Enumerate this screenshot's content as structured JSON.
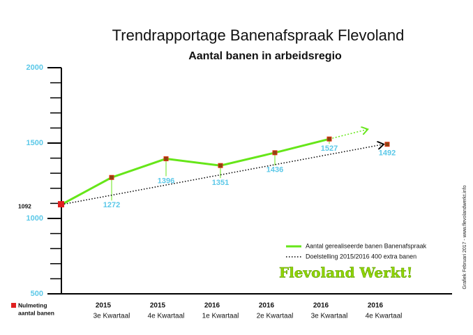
{
  "chart_data": {
    "type": "line",
    "title": "Trendrapportage Banenafspraak Flevoland",
    "subtitle": "Aantal banen in arbeidsregio",
    "categories": [
      null,
      [
        "2015",
        "3e Kwartaal"
      ],
      [
        "2015",
        "4e Kwartaal"
      ],
      [
        "2016",
        "1e Kwartaal"
      ],
      [
        "2016",
        "2e Kwartaal"
      ],
      [
        "2016",
        "3e Kwartaal"
      ],
      [
        "2016",
        "4e Kwartaal"
      ]
    ],
    "series": [
      {
        "name": "Aantal gerealiseerde banen Banenafspraak",
        "color": "#66e619",
        "values": [
          1092,
          1272,
          1396,
          1351,
          1436,
          1527,
          null
        ]
      },
      {
        "name": "Doelstelling 2015/2016 400 extra banen",
        "color": "#000000",
        "values": [
          1092,
          null,
          null,
          null,
          null,
          null,
          1492
        ]
      }
    ],
    "ylim": [
      500,
      2000
    ],
    "yticks": [
      500,
      1000,
      1500,
      2000
    ],
    "yticks_minor": [
      600,
      700,
      800,
      900,
      1100,
      1200,
      1300,
      1400,
      1600,
      1700,
      1800,
      1900
    ],
    "nulmeting_label": [
      "Nulmeting",
      "aantal banen"
    ],
    "nulmeting_color": "#e02020",
    "brand": "Flevoland Werkt!",
    "source": "Grafiek  Februari 2017 - www.flevolandwerkt.info"
  }
}
